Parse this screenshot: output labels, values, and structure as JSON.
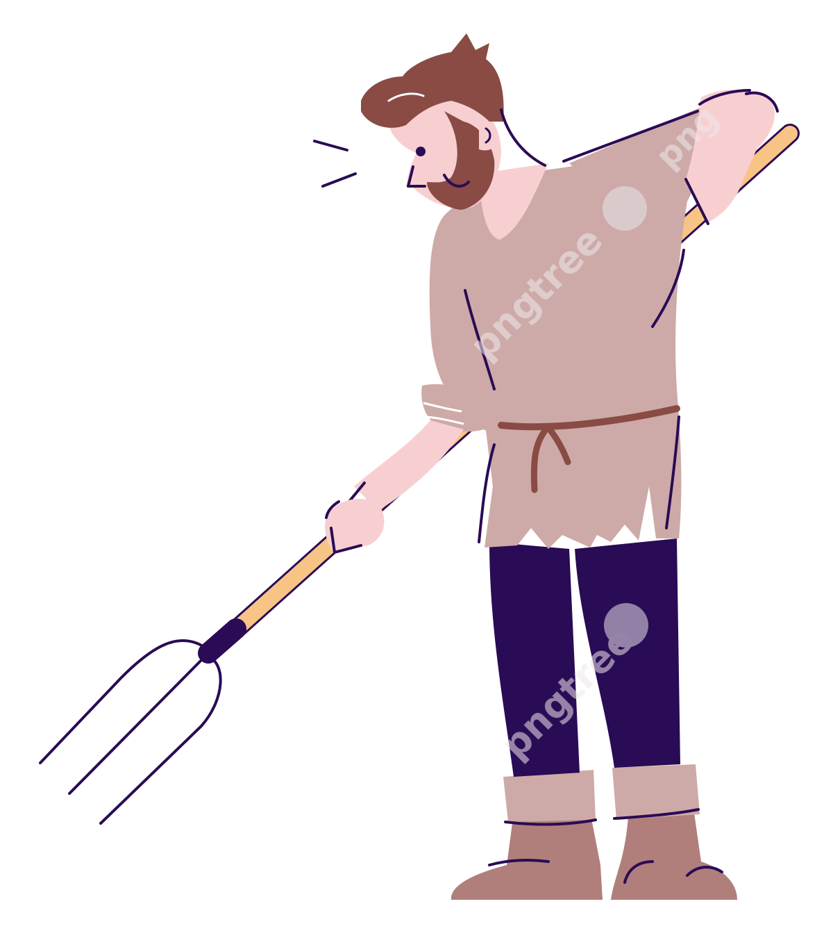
{
  "watermark": {
    "brand": "pngtree",
    "short": "png"
  },
  "colors": {
    "background": "#ffffff",
    "outline": "#2a0b55",
    "skin": "#f8cfd0",
    "hair": "#8a4b45",
    "tunic": "#cdaaa7",
    "belt": "#8a4b45",
    "pants": "#2a0b55",
    "boots": "#b07f7b",
    "boot_cuff": "#cdaaa7",
    "handle": "#f8c486",
    "watermark": "#e8e4ea"
  }
}
